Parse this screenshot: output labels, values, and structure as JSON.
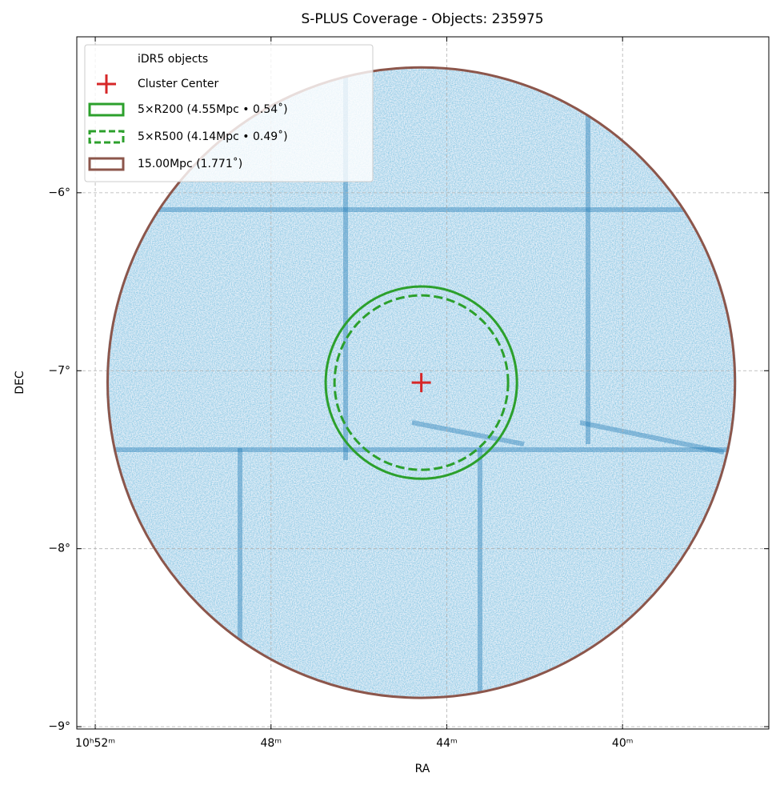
{
  "chart_data": {
    "type": "sky-coverage",
    "title": "S-PLUS Coverage - Objects: 235975",
    "xlabel": "RA",
    "ylabel": "DEC",
    "xlim": [
      163.105,
      159.168
    ],
    "ylim": [
      -9.013,
      -5.124
    ],
    "xticks": [
      {
        "value": 163,
        "label": "10ʰ52ᵐ"
      },
      {
        "value": 162,
        "label": "48ᵐ"
      },
      {
        "value": 161,
        "label": "44ᵐ"
      },
      {
        "value": 160,
        "label": "40ᵐ"
      }
    ],
    "yticks": [
      {
        "value": -6,
        "label": "−6°"
      },
      {
        "value": -7,
        "label": "−7°"
      },
      {
        "value": -8,
        "label": "−8°"
      },
      {
        "value": -9,
        "label": "−9°"
      }
    ],
    "grid": true,
    "legend": "upper left",
    "objects": {
      "name": "iDR5 objects",
      "color": "#1f77b4"
    },
    "center": {
      "name": "Cluster Center",
      "x": 161.145,
      "y": -7.067,
      "color": "#d62728"
    },
    "circles": [
      {
        "name": "5×R200 (4.55Mpc • 0.54˚)",
        "radius": 0.54,
        "color": "#2ca02c",
        "linestyle": "solid"
      },
      {
        "name": "5×R500 (4.14Mpc • 0.49˚)",
        "radius": 0.49,
        "color": "#2ca02c",
        "linestyle": "dashed"
      },
      {
        "name": "15.00Mpc (1.771˚)",
        "radius": 1.771,
        "color": "#8c564b",
        "linestyle": "solid"
      }
    ]
  }
}
